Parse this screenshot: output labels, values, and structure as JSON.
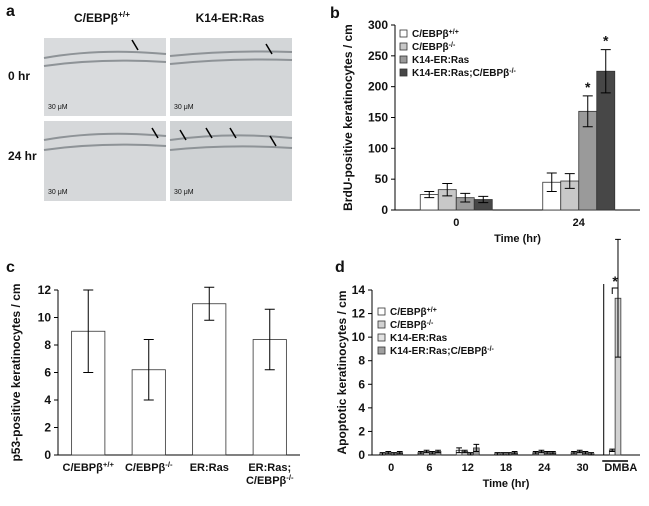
{
  "panel_a": {
    "label": "a",
    "columns": [
      "C/EBPβ+/+",
      "K14-ER:Ras"
    ],
    "rows": [
      "0 hr",
      "24 hr"
    ],
    "scale_labels": [
      "30 μM",
      "30 μM",
      "30 μM",
      "30 μM"
    ]
  },
  "chart_data": [
    {
      "type": "bar",
      "label": "b",
      "xlabel": "Time (hr)",
      "ylabel": "BrdU-positive keratinocytes / cm",
      "categories": [
        "0",
        "24"
      ],
      "ylim": [
        0,
        300
      ],
      "yticks": [
        0,
        50,
        100,
        150,
        200,
        250,
        300
      ],
      "series": [
        {
          "name": "C/EBPβ+/+",
          "color": "#ffffff",
          "values": [
            25,
            45
          ],
          "errors": [
            5,
            15
          ]
        },
        {
          "name": "C/EBPβ-/-",
          "color": "#c8c8c8",
          "values": [
            33,
            47
          ],
          "errors": [
            10,
            12
          ]
        },
        {
          "name": "K14-ER:Ras",
          "color": "#9a9a9a",
          "values": [
            20,
            160
          ],
          "errors": [
            7,
            25
          ]
        },
        {
          "name": "K14-ER:Ras;C/EBPβ-/-",
          "color": "#474747",
          "values": [
            17,
            225
          ],
          "errors": [
            5,
            35
          ]
        }
      ],
      "annotations": [
        "*",
        "*"
      ]
    },
    {
      "type": "bar",
      "label": "c",
      "ylabel": "p53-positive keratinocytes / cm",
      "categories": [
        "C/EBPβ+/+",
        "C/EBPβ-/-",
        "ER:Ras",
        "ER:Ras;C/EBPβ-/-"
      ],
      "ylim": [
        0,
        12
      ],
      "yticks": [
        0,
        2,
        4,
        6,
        8,
        10,
        12
      ],
      "series": [
        {
          "color": "#ffffff",
          "values": [
            9,
            6.2,
            11,
            8.4
          ],
          "errors": [
            3,
            2.2,
            1.2,
            2.2
          ]
        }
      ]
    },
    {
      "type": "bar",
      "label": "d",
      "xlabel": "Time (hr)",
      "ylabel": "Apoptotic keratinocytes / cm",
      "categories": [
        "0",
        "6",
        "12",
        "18",
        "24",
        "30",
        "DMBA"
      ],
      "ylim": [
        0,
        14
      ],
      "yticks": [
        0,
        2,
        4,
        6,
        8,
        10,
        12,
        14
      ],
      "series": [
        {
          "name": "C/EBPβ+/+",
          "color": "#ffffff",
          "values": [
            0.1,
            0.2,
            0.4,
            0.1,
            0.2,
            0.2,
            0.4
          ],
          "errors": [
            0.1,
            0.1,
            0.2,
            0.1,
            0.1,
            0.1,
            0.1
          ]
        },
        {
          "name": "C/EBPβ-/-",
          "color": "#d2d2d2",
          "values": [
            0.2,
            0.3,
            0.3,
            0.1,
            0.3,
            0.3,
            13.3
          ],
          "errors": [
            0.1,
            0.1,
            0.1,
            0.1,
            0.1,
            0.1,
            5
          ]
        },
        {
          "name": "K14-ER:Ras",
          "color": "#e2e2e2",
          "values": [
            0.1,
            0.2,
            0.1,
            0.1,
            0.2,
            0.2,
            null
          ],
          "errors": [
            0.1,
            0.1,
            0.1,
            0.1,
            0.1,
            0.1,
            null
          ]
        },
        {
          "name": "K14-ER:Ras;C/EBPβ-/-",
          "color": "#a0a0a0",
          "values": [
            0.2,
            0.3,
            0.6,
            0.2,
            0.2,
            0.1,
            null
          ],
          "errors": [
            0.1,
            0.1,
            0.3,
            0.1,
            0.1,
            0.1,
            null
          ]
        }
      ],
      "annotations": [
        "*"
      ]
    }
  ]
}
